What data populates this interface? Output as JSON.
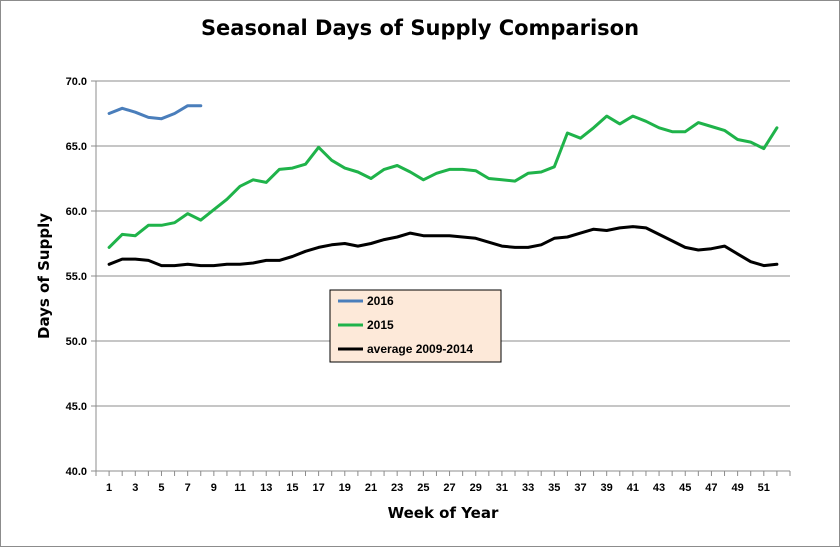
{
  "chart_data": {
    "type": "line",
    "title": "Seasonal Days of Supply Comparison",
    "xlabel": "Week of Year",
    "ylabel": "Days of Supply",
    "ylim": [
      40,
      70
    ],
    "xlim": [
      1,
      52
    ],
    "y_ticks": [
      "40.0",
      "45.0",
      "50.0",
      "55.0",
      "60.0",
      "65.0",
      "70.0"
    ],
    "x_ticks": [
      "1",
      "3",
      "5",
      "7",
      "9",
      "11",
      "13",
      "15",
      "17",
      "19",
      "21",
      "23",
      "25",
      "27",
      "29",
      "31",
      "33",
      "35",
      "37",
      "39",
      "41",
      "43",
      "45",
      "47",
      "49",
      "51"
    ],
    "grid": "horizontal",
    "legend_position": "center-left",
    "legend_background": "#fde9d9",
    "series": [
      {
        "name": "2016",
        "color": "#4a7ebb",
        "x": [
          1,
          2,
          3,
          4,
          5,
          6,
          7,
          8
        ],
        "values": [
          67.5,
          67.9,
          67.6,
          67.2,
          67.1,
          67.5,
          68.1,
          68.1
        ]
      },
      {
        "name": "2015",
        "color": "#1fb34a",
        "x": [
          1,
          2,
          3,
          4,
          5,
          6,
          7,
          8,
          9,
          10,
          11,
          12,
          13,
          14,
          15,
          16,
          17,
          18,
          19,
          20,
          21,
          22,
          23,
          24,
          25,
          26,
          27,
          28,
          29,
          30,
          31,
          32,
          33,
          34,
          35,
          36,
          37,
          38,
          39,
          40,
          41,
          42,
          43,
          44,
          45,
          46,
          47,
          48,
          49,
          50,
          51,
          52
        ],
        "values": [
          57.2,
          58.2,
          58.1,
          58.9,
          58.9,
          59.1,
          59.8,
          59.3,
          60.1,
          60.9,
          61.9,
          62.4,
          62.2,
          63.2,
          63.3,
          63.6,
          64.9,
          63.9,
          63.3,
          63.0,
          62.5,
          63.2,
          63.5,
          63.0,
          62.4,
          62.9,
          63.2,
          63.2,
          63.1,
          62.5,
          62.4,
          62.3,
          62.9,
          63.0,
          63.4,
          66.0,
          65.6,
          66.4,
          67.3,
          66.7,
          67.3,
          66.9,
          66.4,
          66.1,
          66.1,
          66.8,
          66.5,
          66.2,
          65.5,
          65.3,
          64.8,
          66.4
        ]
      },
      {
        "name": "average 2009-2014",
        "color": "#000000",
        "x": [
          1,
          2,
          3,
          4,
          5,
          6,
          7,
          8,
          9,
          10,
          11,
          12,
          13,
          14,
          15,
          16,
          17,
          18,
          19,
          20,
          21,
          22,
          23,
          24,
          25,
          26,
          27,
          28,
          29,
          30,
          31,
          32,
          33,
          34,
          35,
          36,
          37,
          38,
          39,
          40,
          41,
          42,
          43,
          44,
          45,
          46,
          47,
          48,
          49,
          50,
          51,
          52
        ],
        "values": [
          55.9,
          56.3,
          56.3,
          56.2,
          55.8,
          55.8,
          55.9,
          55.8,
          55.8,
          55.9,
          55.9,
          56.0,
          56.2,
          56.2,
          56.5,
          56.9,
          57.2,
          57.4,
          57.5,
          57.3,
          57.5,
          57.8,
          58.0,
          58.3,
          58.1,
          58.1,
          58.1,
          58.0,
          57.9,
          57.6,
          57.3,
          57.2,
          57.2,
          57.4,
          57.9,
          58.0,
          58.3,
          58.6,
          58.5,
          58.7,
          58.8,
          58.7,
          58.2,
          57.7,
          57.2,
          57.0,
          57.1,
          57.3,
          56.7,
          56.1,
          55.8,
          55.9
        ]
      }
    ]
  }
}
